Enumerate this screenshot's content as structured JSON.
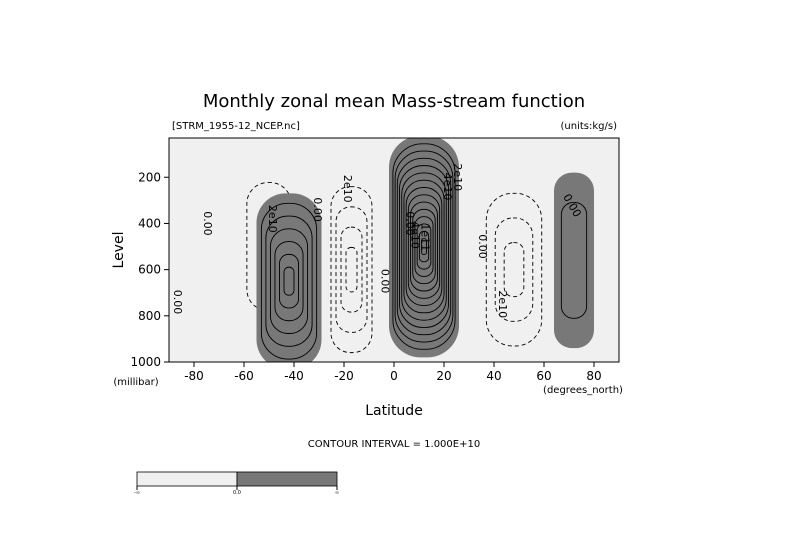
{
  "chart_data": {
    "type": "contour",
    "title": "Monthly zonal mean Mass-stream function",
    "file_label": "[STRM_1955-12_NCEP.nc]",
    "units_label": "(units:kg/s)",
    "xlabel": "Latitude",
    "x_units": "(degrees_north)",
    "ylabel": "Level",
    "y_units": "(millibar)",
    "xlim": [
      -90,
      90
    ],
    "ylim": [
      1000,
      30
    ],
    "x_ticks": [
      -80,
      -60,
      -40,
      -20,
      0,
      20,
      40,
      60,
      80
    ],
    "y_ticks": [
      200,
      400,
      600,
      800,
      1000
    ],
    "contour_interval_text": "CONTOUR INTERVAL = 1.000E+10",
    "contour_interval": 10000000000.0,
    "fill_colors": {
      "negative": "#f0f0f0",
      "positive": "#787878"
    },
    "colorbar": {
      "labels": [
        "-∞",
        "0.0",
        "∞"
      ],
      "colors": [
        "#f0f0f0",
        "#787878"
      ]
    },
    "cells": [
      {
        "name": "southern-ferrel-cell",
        "sign": "negative",
        "center_lat": -50,
        "center_lev": 500,
        "lat_halfwidth": 14,
        "lev_halfwidth": 420,
        "peak": -10000000000.0
      },
      {
        "name": "southern-hadley-cell",
        "sign": "positive",
        "center_lat": -42,
        "center_lev": 650,
        "lat_halfwidth": 13,
        "lev_halfwidth": 380,
        "peak": 60000000000.0
      },
      {
        "name": "weak-southern-cell",
        "sign": "negative",
        "center_lat": -17,
        "center_lev": 600,
        "lat_halfwidth": 10,
        "lev_halfwidth": 420,
        "peak": -40000000000.0
      },
      {
        "name": "northern-hadley-cell",
        "sign": "positive",
        "center_lat": 12,
        "center_lev": 500,
        "lat_halfwidth": 14,
        "lev_halfwidth": 480,
        "peak": 140000000000.0
      },
      {
        "name": "northern-ferrel-cell",
        "sign": "negative",
        "center_lat": 48,
        "center_lev": 600,
        "lat_halfwidth": 14,
        "lev_halfwidth": 400,
        "peak": -30000000000.0
      },
      {
        "name": "polar-cell",
        "sign": "positive",
        "center_lat": 72,
        "center_lev": 560,
        "lat_halfwidth": 8,
        "lev_halfwidth": 380,
        "peak": 10000000000.0
      }
    ],
    "contour_labels": [
      {
        "text": "0.00",
        "lat": -76,
        "lev": 400,
        "rotate": 90
      },
      {
        "text": "0.00",
        "lat": -88,
        "lev": 740,
        "rotate": 90
      },
      {
        "text": "2e10",
        "lat": -50,
        "lev": 380,
        "rotate": 90
      },
      {
        "text": "0.00",
        "lat": -32,
        "lev": 340,
        "rotate": 90
      },
      {
        "text": "2e10",
        "lat": -20,
        "lev": 250,
        "rotate": 90
      },
      {
        "text": "0.00",
        "lat": -5,
        "lev": 650,
        "rotate": 90
      },
      {
        "text": "2e10",
        "lat": 24,
        "lev": 200,
        "rotate": 90
      },
      {
        "text": "4e10",
        "lat": 20,
        "lev": 240,
        "rotate": 90
      },
      {
        "text": "0.00",
        "lat": 5,
        "lev": 400,
        "rotate": 90
      },
      {
        "text": "4e10",
        "lat": 7,
        "lev": 450,
        "rotate": 90
      },
      {
        "text": "1e11",
        "lat": 11,
        "lev": 460,
        "rotate": 90
      },
      {
        "text": "0.00",
        "lat": 34,
        "lev": 500,
        "rotate": 90
      },
      {
        "text": "2e10",
        "lat": 42,
        "lev": 750,
        "rotate": 90
      },
      {
        "text": "0.00",
        "lat": 70,
        "lev": 330,
        "rotate": 60
      }
    ]
  }
}
